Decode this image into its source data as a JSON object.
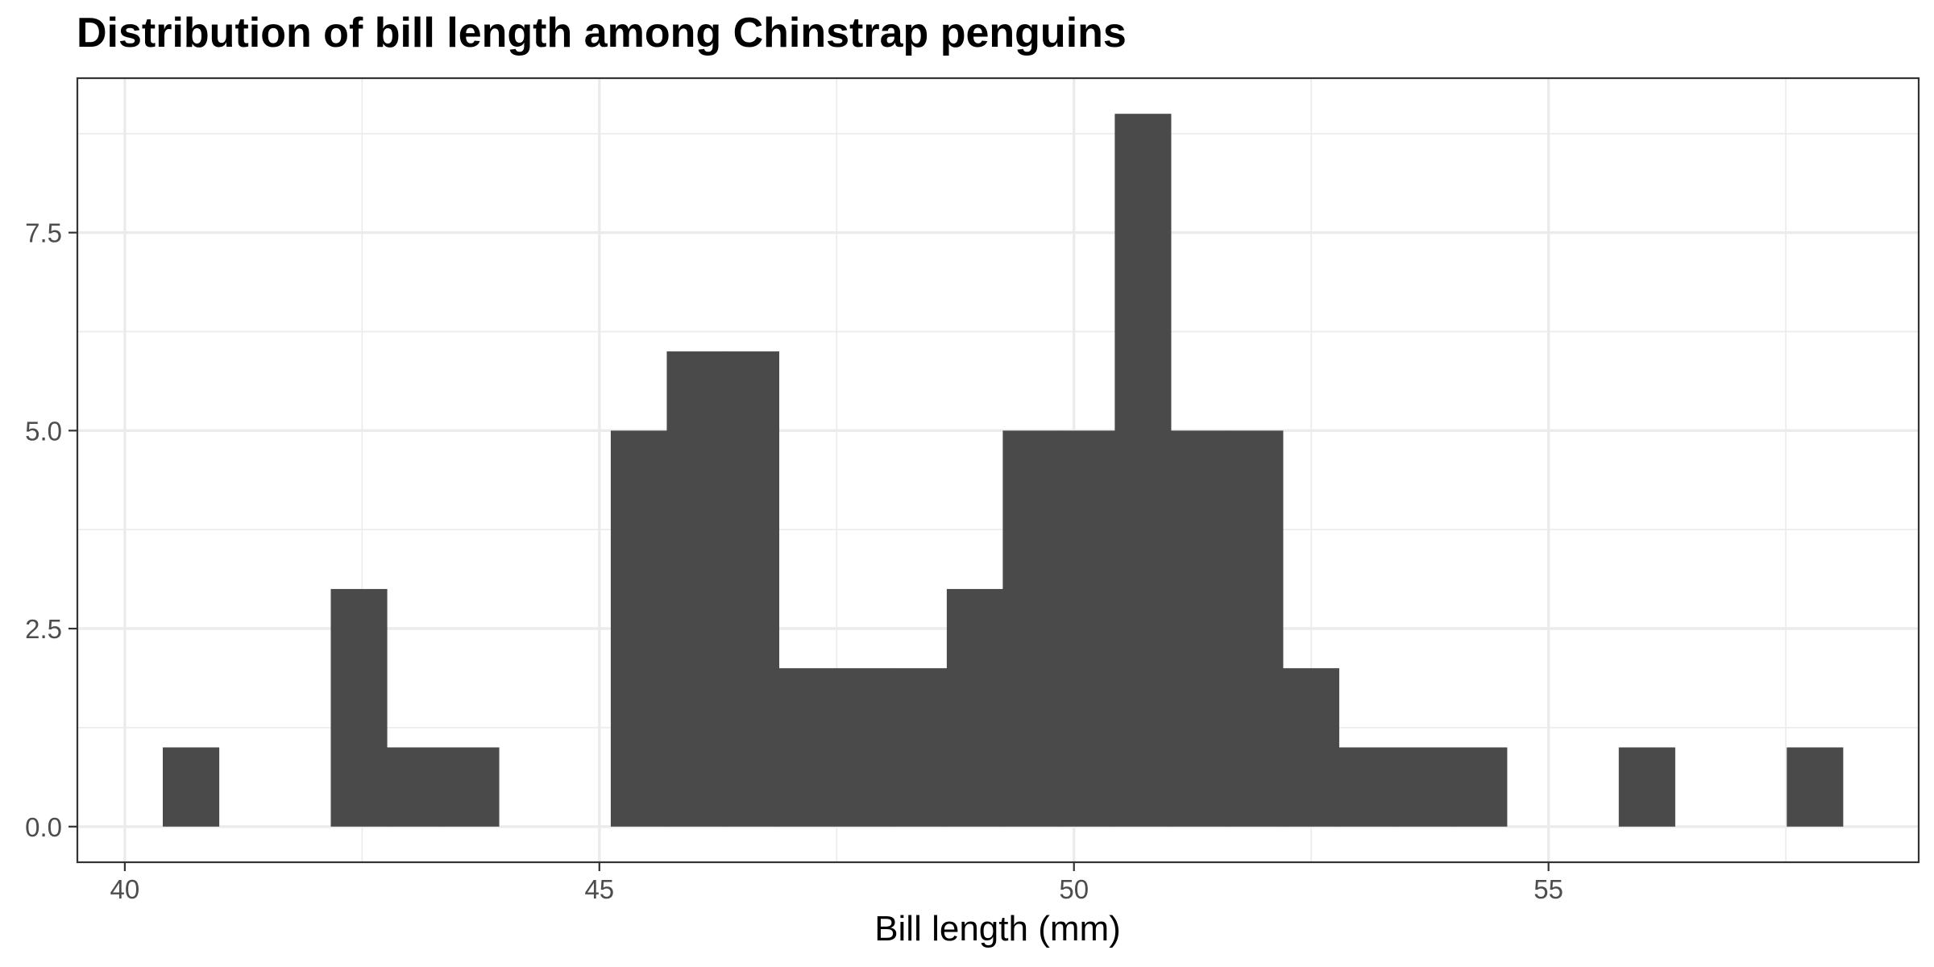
{
  "chart_data": {
    "type": "histogram",
    "title": "Distribution of bill length among Chinstrap penguins",
    "xlabel": "Bill length (mm)",
    "ylabel": "",
    "bin_width": 0.59,
    "bin_start": 40.4,
    "counts": [
      1,
      0,
      0,
      3,
      1,
      1,
      0,
      0,
      5,
      6,
      6,
      2,
      2,
      2,
      3,
      5,
      5,
      9,
      5,
      5,
      2,
      1,
      1,
      1,
      0,
      0,
      1,
      0,
      0,
      1
    ],
    "xlim": [
      39.5,
      58.9
    ],
    "ylim": [
      -0.45,
      9.45
    ],
    "x_ticks": [
      40,
      45,
      50,
      55
    ],
    "x_tick_labels": [
      "40",
      "45",
      "50",
      "55"
    ],
    "y_ticks": [
      0,
      2.5,
      5,
      7.5
    ],
    "y_tick_labels": [
      "0.0",
      "2.5",
      "5.0",
      "7.5"
    ],
    "grid": true,
    "bar_color": "#4a4a4a"
  }
}
